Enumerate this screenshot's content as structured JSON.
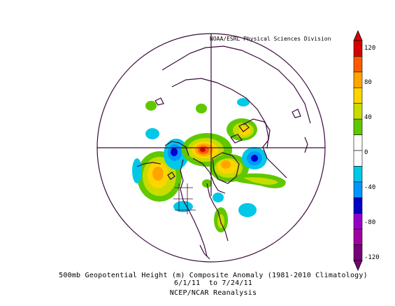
{
  "figure": {
    "credit": "NOAA/ESRL Physical Sciences Division",
    "caption_line1": "500mb Geopotential Height (m) Composite Anomaly (1981-2010 Climatology)",
    "caption_line2": "6/1/11  to 7/24/11",
    "caption_line3": "NCEP/NCAR Reanalysis"
  },
  "colorbar": {
    "labels": [
      "120",
      "80",
      "40",
      "0",
      "-40",
      "-80",
      "-120"
    ],
    "colors": [
      "#d70000",
      "#ff5a00",
      "#ffa500",
      "#ffd500",
      "#c8dc00",
      "#5fc800",
      "#ffffff",
      "#ffffff",
      "#00c8e6",
      "#0096ff",
      "#0000c8",
      "#9600c8",
      "#a000a0",
      "#780078"
    ]
  },
  "map": {
    "projection": "polar stereographic",
    "anomaly_colors": {
      "strong_positive": "#d70000",
      "positive_high": "#ff5a00",
      "positive_mid": "#ffa500",
      "positive_low": "#ffd500",
      "positive_weak": "#c8dc00",
      "positive_min": "#5fc800",
      "negative_min": "#00c8e6",
      "negative_low": "#0096ff",
      "negative_mid": "#0000c8"
    },
    "coastline_color": "#3c0a3c"
  }
}
